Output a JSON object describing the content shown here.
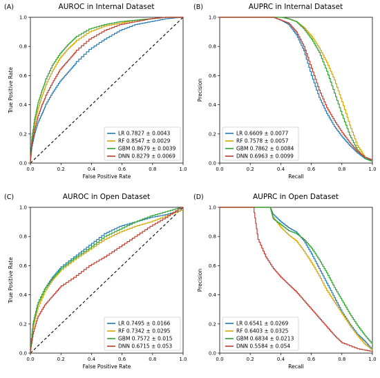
{
  "colors": {
    "LR": "#1f77b4",
    "RF": "#d6a400",
    "GBM": "#2ca02c",
    "DNN": "#c0392b",
    "diagonal": "#000000"
  },
  "chart_data": [
    {
      "panel": "(A)",
      "type": "line",
      "title": "AUROC in Internal Dataset",
      "xlabel": "False Positive Rate",
      "ylabel": "True Positive Rate",
      "xlim": [
        0,
        1
      ],
      "ylim": [
        0,
        1
      ],
      "xticks": [
        "0.0",
        "0.2",
        "0.4",
        "0.6",
        "0.8",
        "1.0"
      ],
      "yticks": [
        "0.0",
        "0.2",
        "0.4",
        "0.6",
        "0.8",
        "1.0"
      ],
      "diagonal": true,
      "legend_position": "lower-right",
      "series": [
        {
          "name": "LR",
          "legend": "LR 0.7827 ± 0.0043",
          "color": "#1f77b4",
          "x": [
            0,
            0.01,
            0.03,
            0.05,
            0.08,
            0.1,
            0.15,
            0.2,
            0.25,
            0.3,
            0.4,
            0.5,
            0.6,
            0.7,
            0.8,
            0.9,
            1.0
          ],
          "y": [
            0,
            0.1,
            0.2,
            0.27,
            0.34,
            0.39,
            0.48,
            0.56,
            0.62,
            0.68,
            0.78,
            0.85,
            0.91,
            0.95,
            0.97,
            0.99,
            1.0
          ]
        },
        {
          "name": "RF",
          "legend": "RF 0.8547 ± 0.0029",
          "color": "#d6a400",
          "x": [
            0,
            0.01,
            0.03,
            0.05,
            0.08,
            0.1,
            0.15,
            0.2,
            0.25,
            0.3,
            0.4,
            0.5,
            0.6,
            0.7,
            0.8,
            0.9,
            1.0
          ],
          "y": [
            0,
            0.14,
            0.27,
            0.36,
            0.46,
            0.52,
            0.63,
            0.72,
            0.78,
            0.83,
            0.9,
            0.94,
            0.96,
            0.98,
            0.99,
            1.0,
            1.0
          ]
        },
        {
          "name": "GBM",
          "legend": "GBM 0.8679 ± 0.0039",
          "color": "#2ca02c",
          "x": [
            0,
            0.01,
            0.03,
            0.05,
            0.08,
            0.1,
            0.15,
            0.2,
            0.25,
            0.3,
            0.4,
            0.5,
            0.6,
            0.7,
            0.8,
            0.9,
            1.0
          ],
          "y": [
            0,
            0.16,
            0.3,
            0.4,
            0.5,
            0.56,
            0.67,
            0.75,
            0.81,
            0.86,
            0.92,
            0.95,
            0.97,
            0.98,
            0.99,
            1.0,
            1.0
          ]
        },
        {
          "name": "DNN",
          "legend": "DNN 0.8279 ± 0.0069",
          "color": "#c0392b",
          "x": [
            0,
            0.01,
            0.03,
            0.05,
            0.08,
            0.1,
            0.15,
            0.2,
            0.25,
            0.3,
            0.4,
            0.5,
            0.6,
            0.7,
            0.8,
            0.9,
            1.0
          ],
          "y": [
            0,
            0.12,
            0.23,
            0.31,
            0.4,
            0.45,
            0.55,
            0.64,
            0.7,
            0.76,
            0.85,
            0.91,
            0.95,
            0.97,
            0.99,
            1.0,
            1.0
          ]
        }
      ]
    },
    {
      "panel": "(B)",
      "type": "line",
      "title": "AUPRC in Internal Dataset",
      "xlabel": "Recall",
      "ylabel": "Precision",
      "xlim": [
        0,
        1
      ],
      "ylim": [
        0,
        1
      ],
      "xticks": [
        "0.0",
        "0.2",
        "0.4",
        "0.6",
        "0.8",
        "1.0"
      ],
      "yticks": [
        "0.0",
        "0.2",
        "0.4",
        "0.6",
        "0.8",
        "1.0"
      ],
      "diagonal": false,
      "legend_position": "lower-left",
      "series": [
        {
          "name": "LR",
          "legend": "LR 0.6609 ± 0.0077",
          "color": "#1f77b4",
          "x": [
            0,
            0.35,
            0.4,
            0.45,
            0.5,
            0.55,
            0.6,
            0.65,
            0.7,
            0.75,
            0.8,
            0.85,
            0.9,
            0.95,
            1.0
          ],
          "y": [
            1.0,
            1.0,
            0.98,
            0.95,
            0.88,
            0.77,
            0.6,
            0.45,
            0.34,
            0.25,
            0.18,
            0.12,
            0.07,
            0.03,
            0.02
          ]
        },
        {
          "name": "RF",
          "legend": "RF 0.7578 ± 0.0057",
          "color": "#d6a400",
          "x": [
            0,
            0.4,
            0.45,
            0.5,
            0.55,
            0.6,
            0.65,
            0.7,
            0.75,
            0.8,
            0.85,
            0.9,
            0.95,
            1.0
          ],
          "y": [
            1.0,
            1.0,
            0.99,
            0.97,
            0.93,
            0.87,
            0.79,
            0.69,
            0.57,
            0.42,
            0.26,
            0.12,
            0.04,
            0.02
          ]
        },
        {
          "name": "GBM",
          "legend": "GBM 0.7862 ± 0.0084",
          "color": "#2ca02c",
          "x": [
            0,
            0.4,
            0.45,
            0.5,
            0.55,
            0.6,
            0.65,
            0.7,
            0.75,
            0.8,
            0.85,
            0.9,
            0.95,
            1.0
          ],
          "y": [
            1.0,
            1.0,
            0.99,
            0.97,
            0.92,
            0.85,
            0.76,
            0.63,
            0.48,
            0.33,
            0.19,
            0.09,
            0.03,
            0.01
          ]
        },
        {
          "name": "DNN",
          "legend": "DNN 0.6963 ± 0.0099",
          "color": "#c0392b",
          "x": [
            0,
            0.35,
            0.4,
            0.45,
            0.5,
            0.55,
            0.6,
            0.65,
            0.7,
            0.75,
            0.8,
            0.85,
            0.9,
            0.95,
            1.0
          ],
          "y": [
            1.0,
            1.0,
            0.98,
            0.96,
            0.9,
            0.8,
            0.65,
            0.5,
            0.38,
            0.29,
            0.21,
            0.14,
            0.08,
            0.04,
            0.02
          ]
        }
      ]
    },
    {
      "panel": "(C)",
      "type": "line",
      "title": "AUROC in Open Dataset",
      "xlabel": "False Positive Rate",
      "ylabel": "True Positive Rate",
      "xlim": [
        0,
        1
      ],
      "ylim": [
        0,
        1
      ],
      "xticks": [
        "0.0",
        "0.2",
        "0.4",
        "0.6",
        "0.8",
        "1.0"
      ],
      "yticks": [
        "0.0",
        "0.2",
        "0.4",
        "0.6",
        "0.8",
        "1.0"
      ],
      "diagonal": true,
      "legend_position": "lower-right",
      "series": [
        {
          "name": "LR",
          "legend": "LR 0.7495 ± 0.0166",
          "color": "#1f77b4",
          "x": [
            0,
            0.02,
            0.05,
            0.1,
            0.15,
            0.2,
            0.3,
            0.4,
            0.5,
            0.6,
            0.7,
            0.8,
            0.9,
            1.0
          ],
          "y": [
            0,
            0.2,
            0.33,
            0.44,
            0.52,
            0.58,
            0.66,
            0.74,
            0.82,
            0.87,
            0.9,
            0.93,
            0.95,
            0.98
          ]
        },
        {
          "name": "RF",
          "legend": "RF 0.7342 ± 0.0295",
          "color": "#d6a400",
          "x": [
            0,
            0.02,
            0.05,
            0.1,
            0.15,
            0.2,
            0.3,
            0.4,
            0.5,
            0.6,
            0.7,
            0.8,
            0.9,
            1.0
          ],
          "y": [
            0,
            0.17,
            0.3,
            0.42,
            0.5,
            0.56,
            0.64,
            0.71,
            0.78,
            0.83,
            0.87,
            0.9,
            0.94,
            0.98
          ]
        },
        {
          "name": "GBM",
          "legend": "GBM 0.7572 ± 0.015",
          "color": "#2ca02c",
          "x": [
            0,
            0.02,
            0.05,
            0.1,
            0.15,
            0.2,
            0.3,
            0.4,
            0.5,
            0.6,
            0.7,
            0.8,
            0.9,
            1.0
          ],
          "y": [
            0,
            0.2,
            0.33,
            0.44,
            0.51,
            0.57,
            0.65,
            0.72,
            0.8,
            0.85,
            0.9,
            0.94,
            0.97,
            1.0
          ]
        },
        {
          "name": "DNN",
          "legend": "DNN 0.6715 ± 0.053",
          "color": "#c0392b",
          "x": [
            0,
            0.02,
            0.05,
            0.1,
            0.15,
            0.2,
            0.3,
            0.4,
            0.5,
            0.6,
            0.7,
            0.8,
            0.9,
            1.0
          ],
          "y": [
            0,
            0.13,
            0.24,
            0.33,
            0.39,
            0.45,
            0.52,
            0.6,
            0.66,
            0.73,
            0.8,
            0.87,
            0.93,
            1.0
          ]
        }
      ]
    },
    {
      "panel": "(D)",
      "type": "line",
      "title": "AUPRC in Open Dataset",
      "xlabel": "Recall",
      "ylabel": "Precision",
      "xlim": [
        0,
        1
      ],
      "ylim": [
        0,
        1
      ],
      "xticks": [
        "0.0",
        "0.2",
        "0.4",
        "0.6",
        "0.8",
        "1.0"
      ],
      "yticks": [
        "0.0",
        "0.2",
        "0.4",
        "0.6",
        "0.8",
        "1.0"
      ],
      "diagonal": false,
      "legend_position": "lower-left",
      "series": [
        {
          "name": "LR",
          "legend": "LR 0.6541 ± 0.0269",
          "color": "#1f77b4",
          "x": [
            0,
            0.33,
            0.35,
            0.4,
            0.45,
            0.5,
            0.55,
            0.6,
            0.65,
            0.7,
            0.75,
            0.8,
            0.85,
            0.9,
            0.95,
            1.0
          ],
          "y": [
            1.0,
            1.0,
            0.95,
            0.9,
            0.86,
            0.83,
            0.77,
            0.68,
            0.58,
            0.48,
            0.38,
            0.28,
            0.2,
            0.13,
            0.08,
            0.02
          ]
        },
        {
          "name": "RF",
          "legend": "RF 0.6403 ± 0.0325",
          "color": "#d6a400",
          "x": [
            0,
            0.33,
            0.35,
            0.4,
            0.45,
            0.5,
            0.55,
            0.6,
            0.65,
            0.7,
            0.75,
            0.8,
            0.85,
            0.9,
            0.95,
            1.0
          ],
          "y": [
            1.0,
            1.0,
            0.93,
            0.86,
            0.81,
            0.77,
            0.7,
            0.62,
            0.53,
            0.43,
            0.35,
            0.27,
            0.19,
            0.12,
            0.06,
            0.02
          ]
        },
        {
          "name": "GBM",
          "legend": "GBM 0.6834 ± 0.0213",
          "color": "#2ca02c",
          "x": [
            0,
            0.33,
            0.35,
            0.4,
            0.45,
            0.5,
            0.55,
            0.6,
            0.65,
            0.7,
            0.75,
            0.8,
            0.85,
            0.9,
            0.95,
            1.0
          ],
          "y": [
            1.0,
            1.0,
            0.92,
            0.88,
            0.84,
            0.82,
            0.78,
            0.72,
            0.64,
            0.55,
            0.45,
            0.36,
            0.27,
            0.19,
            0.12,
            0.06
          ]
        },
        {
          "name": "DNN",
          "legend": "DNN 0.5584 ± 0.054",
          "color": "#c0392b",
          "x": [
            0,
            0.22,
            0.25,
            0.3,
            0.35,
            0.4,
            0.45,
            0.5,
            0.55,
            0.6,
            0.65,
            0.7,
            0.75,
            0.8,
            0.9,
            1.0
          ],
          "y": [
            1.0,
            1.0,
            0.78,
            0.66,
            0.58,
            0.52,
            0.47,
            0.42,
            0.36,
            0.3,
            0.24,
            0.18,
            0.12,
            0.07,
            0.03,
            0.01
          ]
        }
      ]
    }
  ]
}
